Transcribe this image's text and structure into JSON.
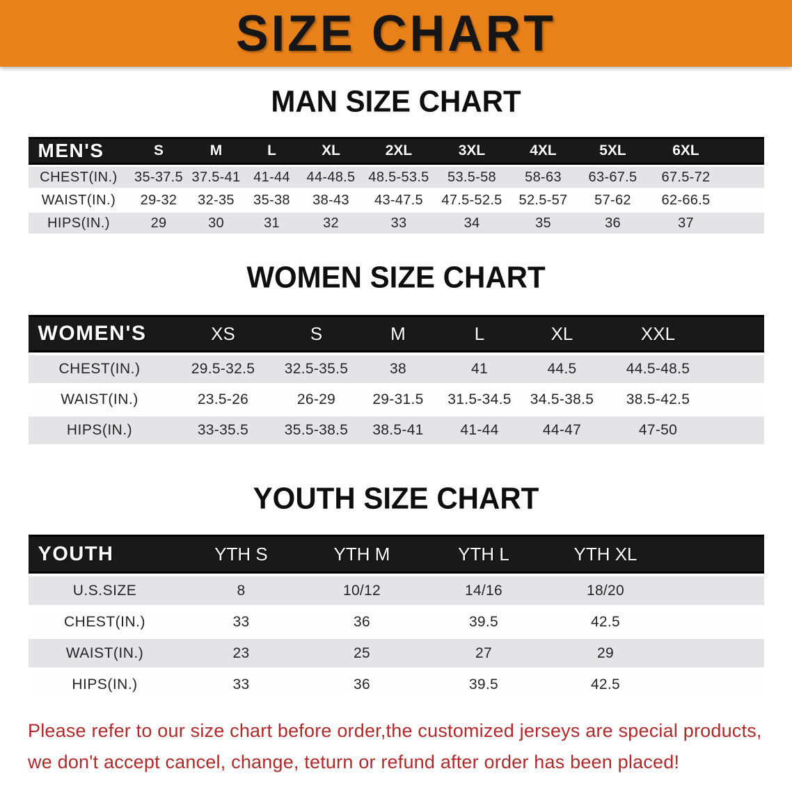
{
  "banner": {
    "title": "SIZE CHART"
  },
  "sections": [
    {
      "heading": "MAN SIZE CHART",
      "table": {
        "label": "MEN'S",
        "columns": [
          "S",
          "M",
          "L",
          "XL",
          "2XL",
          "3XL",
          "4XL",
          "5XL",
          "6XL"
        ],
        "rows": [
          {
            "label": "CHEST(IN.)",
            "values": [
              "35-37.5",
              "37.5-41",
              "41-44",
              "44-48.5",
              "48.5-53.5",
              "53.5-58",
              "58-63",
              "63-67.5",
              "67.5-72"
            ]
          },
          {
            "label": "WAIST(IN.)",
            "values": [
              "29-32",
              "32-35",
              "35-38",
              "38-43",
              "43-47.5",
              "47.5-52.5",
              "52.5-57",
              "57-62",
              "62-66.5"
            ]
          },
          {
            "label": "HIPS(IN.)",
            "values": [
              "29",
              "30",
              "31",
              "32",
              "33",
              "34",
              "35",
              "36",
              "37"
            ]
          }
        ]
      }
    },
    {
      "heading": "WOMEN SIZE CHART",
      "table": {
        "label": "WOMEN'S",
        "columns": [
          "XS",
          "S",
          "M",
          "L",
          "XL",
          "XXL"
        ],
        "rows": [
          {
            "label": "CHEST(IN.)",
            "values": [
              "29.5-32.5",
              "32.5-35.5",
              "38",
              "41",
              "44.5",
              "44.5-48.5"
            ]
          },
          {
            "label": "WAIST(IN.)",
            "values": [
              "23.5-26",
              "26-29",
              "29-31.5",
              "31.5-34.5",
              "34.5-38.5",
              "38.5-42.5"
            ]
          },
          {
            "label": "HIPS(IN.)",
            "values": [
              "33-35.5",
              "35.5-38.5",
              "38.5-41",
              "41-44",
              "44-47",
              "47-50"
            ]
          }
        ]
      }
    },
    {
      "heading": "YOUTH SIZE CHART",
      "table": {
        "label": "YOUTH",
        "columns": [
          "YTH S",
          "YTH M",
          "YTH L",
          "YTH XL"
        ],
        "rows": [
          {
            "label": "U.S.SIZE",
            "values": [
              "8",
              "10/12",
              "14/16",
              "18/20"
            ]
          },
          {
            "label": "CHEST(IN.)",
            "values": [
              "33",
              "36",
              "39.5",
              "42.5"
            ]
          },
          {
            "label": "WAIST(IN.)",
            "values": [
              "23",
              "25",
              "27",
              "29"
            ]
          },
          {
            "label": "HIPS(IN.)",
            "values": [
              "33",
              "36",
              "39.5",
              "42.5"
            ]
          }
        ]
      }
    }
  ],
  "disclaimer": {
    "line1": "Please refer to our size chart before order,the customized jerseys are special products,",
    "line2": "we don't accept cancel, change, teturn or refund after order has been placed!"
  },
  "colors": {
    "banner_bg": "#E8811A",
    "table_header_bg": "#191919",
    "row_alt_bg": "#E4E4E6",
    "disclaimer_text": "#AE2A2B"
  }
}
